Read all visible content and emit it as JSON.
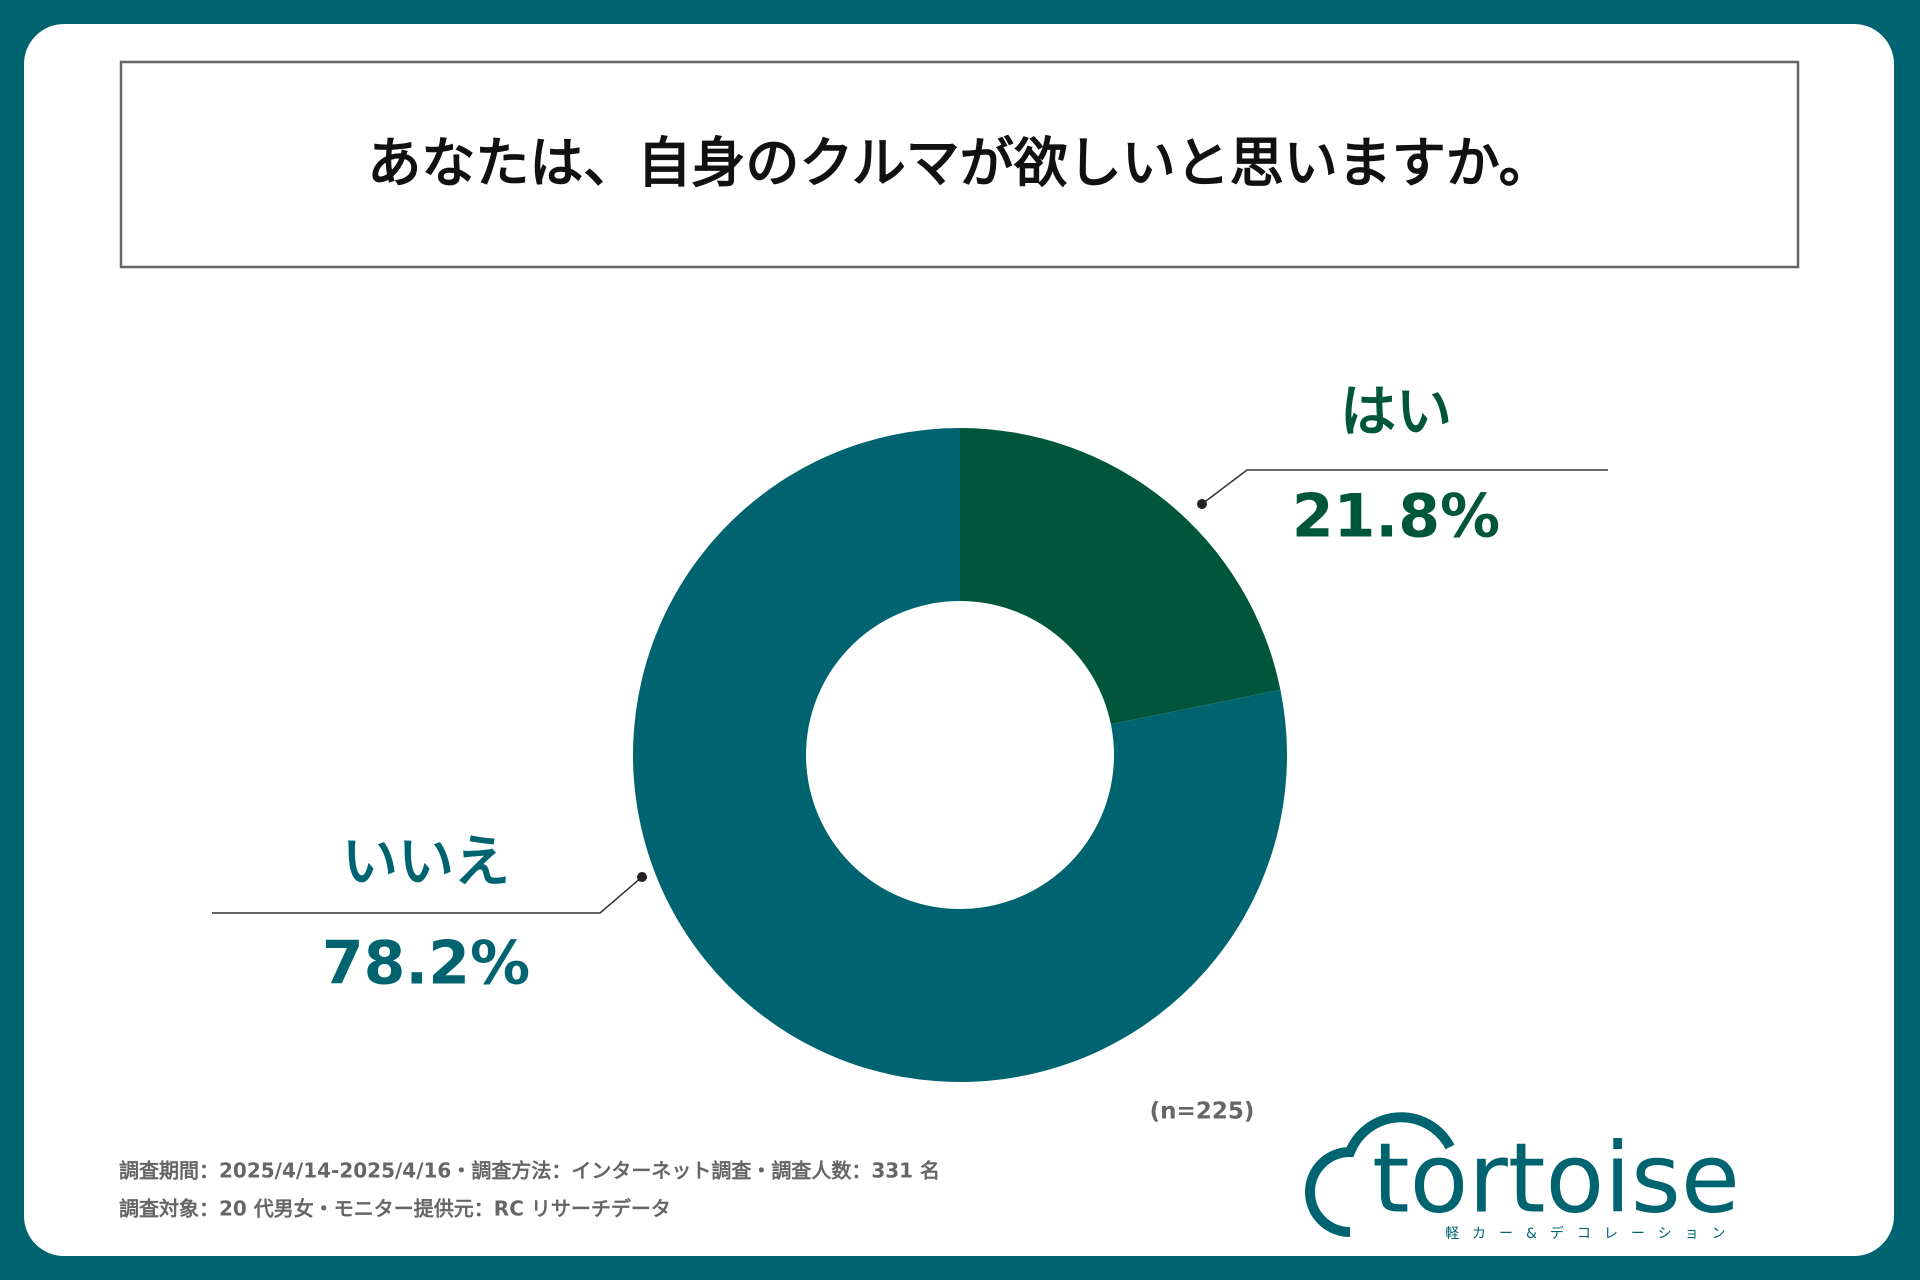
{
  "chart_data": {
    "type": "donut",
    "title": "あなたは、自身のクルマが欲しいと思いますか。",
    "categories": [
      "はい",
      "いいえ"
    ],
    "values": [
      21.8,
      78.2
    ],
    "value_labels": [
      "21.8%",
      "78.2%"
    ],
    "colors": [
      "#00563b",
      "#006470"
    ],
    "note": "(n=225)"
  },
  "footer": {
    "lines": [
      "調査期間：2025/4/14-2025/4/16・調査方法：インターネット調査・調査人数：331 名",
      "調査対象：20 代男女・モニター提供元：RC リサーチデータ"
    ]
  },
  "logo": {
    "name": "tortoise",
    "tagline": "軽カー&デコレーション"
  }
}
